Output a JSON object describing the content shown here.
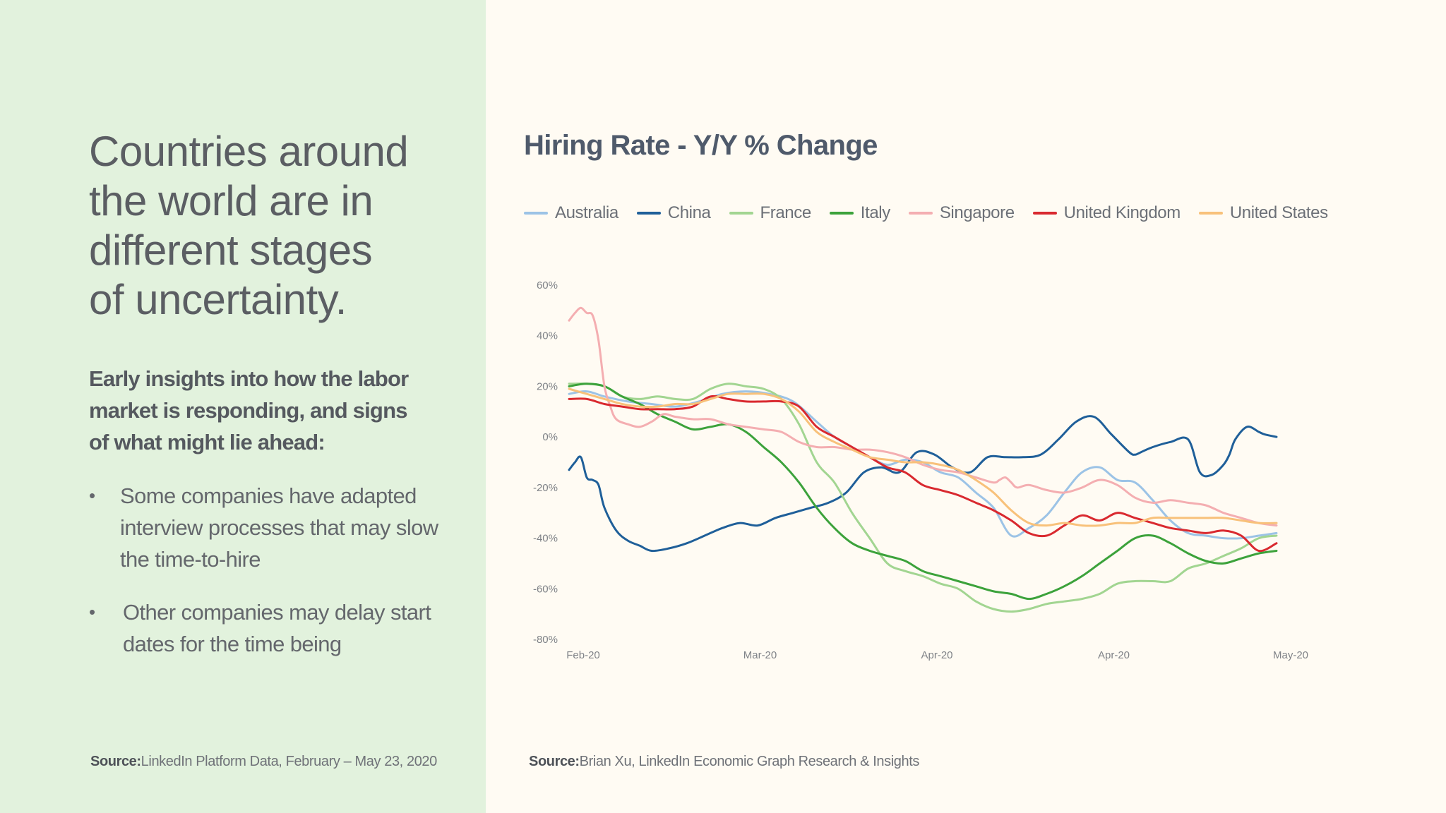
{
  "left_panel": {
    "headline": [
      "Countries around",
      "the world are in",
      "different stages",
      "of uncertainty."
    ],
    "subhead": "Early insights into how the labor market is responding, and signs of what might lie ahead:",
    "bullets": [
      "Some companies have adapted interview processes that may slow the time-to-hire",
      "Other companies may delay start dates for the time being"
    ],
    "bullet_symbol": "•",
    "source_label": "Source:",
    "source_text": "LinkedIn Platform Data, February – May 23, 2020"
  },
  "right_panel": {
    "source_label": "Source:",
    "source_text": "Brian Xu, LinkedIn Economic Graph Research & Insights"
  },
  "colors": {
    "left_bg": "#e2f2dd",
    "right_bg": "#fffbf3"
  },
  "chart_data": {
    "type": "line",
    "title": "Hiring Rate - Y/Y % Change",
    "xlabel": "",
    "ylabel": "",
    "ylim": [
      -80,
      60
    ],
    "xlim": [
      0,
      120
    ],
    "y_ticks": [
      60,
      40,
      20,
      0,
      -20,
      -40,
      -60,
      -80
    ],
    "y_tick_labels": [
      "60%",
      "40%",
      "20%",
      "0%",
      "-20%",
      "-40%",
      "-60%",
      "-80%"
    ],
    "x_tick_positions": [
      0,
      30,
      60,
      90,
      120
    ],
    "x_tick_labels": [
      "Feb-20",
      "Mar-20",
      "Apr-20",
      "Apr-20",
      "May-20"
    ],
    "grid": false,
    "legend_position": "top",
    "series": [
      {
        "name": "Australia",
        "color": "#9cc3e6",
        "x": [
          0,
          3,
          6,
          10,
          14,
          18,
          22,
          26,
          30,
          34,
          38,
          42,
          45,
          48,
          51,
          54,
          57,
          60,
          63,
          66,
          69,
          72,
          75,
          78,
          81,
          84,
          87,
          90,
          93,
          96,
          99,
          102,
          105,
          108,
          111,
          114,
          117,
          120
        ],
        "y": [
          17,
          18,
          16,
          14,
          13,
          12,
          14,
          17,
          18,
          17,
          14,
          6,
          0,
          -4,
          -8,
          -11,
          -9,
          -10,
          -14,
          -16,
          -22,
          -28,
          -39,
          -36,
          -31,
          -22,
          -14,
          -12,
          -17,
          -18,
          -25,
          -33,
          -38,
          -39,
          -40,
          -40,
          -39,
          -38
        ]
      },
      {
        "name": "China",
        "color": "#1f5f99",
        "x": [
          0,
          1,
          2,
          3,
          4,
          5,
          6,
          8,
          10,
          12,
          14,
          17,
          20,
          23,
          26,
          29,
          32,
          35,
          38,
          41,
          44,
          47,
          50,
          53,
          56,
          59,
          62,
          65,
          68,
          71,
          74,
          77,
          80,
          83,
          86,
          89,
          92,
          95,
          96,
          97,
          99,
          102,
          105,
          107,
          109,
          111,
          112,
          113,
          115,
          117,
          118,
          120
        ],
        "y": [
          -13,
          -10,
          -8,
          -16,
          -17,
          -19,
          -28,
          -37,
          -41,
          -43,
          -45,
          -44,
          -42,
          -39,
          -36,
          -34,
          -35,
          -32,
          -30,
          -28,
          -26,
          -22,
          -14,
          -12,
          -14,
          -6,
          -7,
          -12,
          -14,
          -8,
          -8,
          -8,
          -7,
          -1,
          6,
          8,
          1,
          -6,
          -7,
          -6,
          -4,
          -2,
          -1,
          -14,
          -15,
          -11,
          -7,
          -1,
          4,
          2,
          1,
          0
        ]
      },
      {
        "name": "France",
        "color": "#a2d591",
        "x": [
          0,
          3,
          6,
          9,
          12,
          15,
          18,
          21,
          24,
          27,
          30,
          33,
          36,
          39,
          42,
          45,
          48,
          51,
          54,
          57,
          60,
          63,
          66,
          69,
          72,
          75,
          78,
          81,
          84,
          87,
          90,
          93,
          96,
          99,
          102,
          105,
          108,
          111,
          114,
          117,
          120
        ],
        "y": [
          21,
          21,
          20,
          16,
          15,
          16,
          15,
          15,
          19,
          21,
          20,
          19,
          15,
          5,
          -10,
          -18,
          -30,
          -40,
          -50,
          -53,
          -55,
          -58,
          -60,
          -65,
          -68,
          -69,
          -68,
          -66,
          -65,
          -64,
          -62,
          -58,
          -57,
          -57,
          -57,
          -52,
          -50,
          -47,
          -44,
          -40,
          -39
        ]
      },
      {
        "name": "Italy",
        "color": "#3ca23b",
        "x": [
          0,
          3,
          6,
          9,
          12,
          15,
          18,
          21,
          24,
          27,
          30,
          33,
          36,
          39,
          42,
          45,
          48,
          51,
          54,
          57,
          60,
          63,
          66,
          69,
          72,
          75,
          78,
          81,
          84,
          87,
          90,
          93,
          96,
          99,
          102,
          105,
          108,
          111,
          114,
          117,
          120
        ],
        "y": [
          20,
          21,
          20,
          16,
          13,
          9,
          6,
          3,
          4,
          5,
          2,
          -4,
          -10,
          -18,
          -28,
          -36,
          -42,
          -45,
          -47,
          -49,
          -53,
          -55,
          -57,
          -59,
          -61,
          -62,
          -64,
          -62,
          -59,
          -55,
          -50,
          -45,
          -40,
          -39,
          -42,
          -46,
          -49,
          -50,
          -48,
          -46,
          -45
        ]
      },
      {
        "name": "Singapore",
        "color": "#f4aeb1",
        "x": [
          0,
          1,
          2,
          3,
          4,
          5,
          6,
          7,
          8,
          10,
          12,
          14,
          16,
          18,
          21,
          24,
          27,
          30,
          33,
          36,
          39,
          42,
          45,
          48,
          51,
          54,
          57,
          60,
          63,
          66,
          69,
          72,
          73,
          74,
          75,
          76,
          78,
          81,
          84,
          87,
          90,
          93,
          96,
          99,
          102,
          105,
          108,
          111,
          114,
          117,
          120
        ],
        "y": [
          46,
          49,
          51,
          49,
          48,
          38,
          20,
          12,
          7,
          5,
          4,
          6,
          9,
          8,
          7,
          7,
          5,
          4,
          3,
          2,
          -2,
          -4,
          -4,
          -5,
          -5,
          -6,
          -8,
          -11,
          -13,
          -14,
          -16,
          -18,
          -17,
          -16,
          -18,
          -20,
          -19,
          -21,
          -22,
          -20,
          -17,
          -19,
          -24,
          -26,
          -25,
          -26,
          -27,
          -30,
          -32,
          -34,
          -35
        ]
      },
      {
        "name": "United Kingdom",
        "color": "#d9292f",
        "x": [
          0,
          3,
          6,
          9,
          12,
          15,
          18,
          21,
          24,
          27,
          30,
          33,
          36,
          39,
          42,
          45,
          48,
          51,
          54,
          57,
          60,
          63,
          66,
          69,
          72,
          75,
          78,
          81,
          84,
          87,
          90,
          93,
          96,
          99,
          102,
          105,
          108,
          111,
          114,
          117,
          120
        ],
        "y": [
          15,
          15,
          13,
          12,
          11,
          11,
          11,
          12,
          16,
          15,
          14,
          14,
          14,
          12,
          4,
          0,
          -4,
          -8,
          -12,
          -14,
          -19,
          -21,
          -23,
          -26,
          -29,
          -33,
          -38,
          -39,
          -35,
          -31,
          -33,
          -30,
          -32,
          -34,
          -36,
          -37,
          -38,
          -37,
          -39,
          -45,
          -42
        ]
      },
      {
        "name": "United States",
        "color": "#f8c17a",
        "x": [
          0,
          3,
          6,
          9,
          12,
          15,
          18,
          21,
          24,
          27,
          30,
          33,
          36,
          39,
          42,
          45,
          48,
          51,
          54,
          57,
          60,
          63,
          66,
          69,
          72,
          75,
          78,
          81,
          84,
          87,
          90,
          93,
          96,
          99,
          102,
          105,
          108,
          111,
          114,
          117,
          120
        ],
        "y": [
          19,
          17,
          15,
          13,
          12,
          12,
          13,
          13,
          15,
          17,
          17,
          17,
          15,
          10,
          2,
          -2,
          -5,
          -8,
          -9,
          -10,
          -10,
          -11,
          -13,
          -17,
          -22,
          -29,
          -34,
          -35,
          -34,
          -35,
          -35,
          -34,
          -34,
          -32,
          -32,
          -32,
          -32,
          -32,
          -33,
          -34,
          -34
        ]
      }
    ]
  }
}
